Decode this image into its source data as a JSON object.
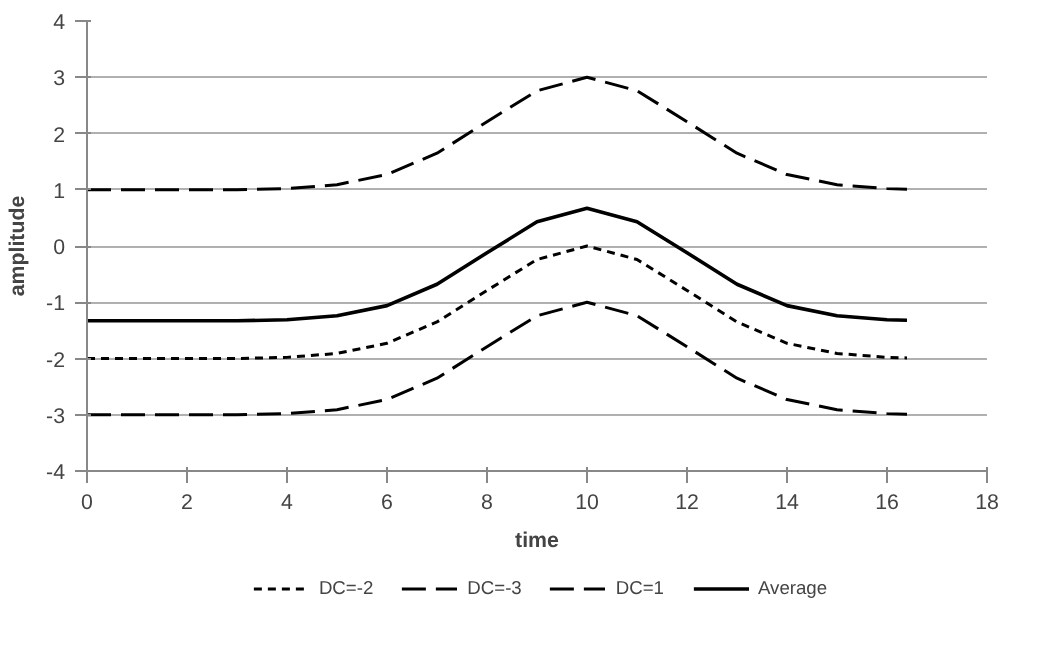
{
  "chart_data": {
    "type": "line",
    "xlabel": "time",
    "ylabel": "amplitude",
    "x": [
      0,
      1,
      2,
      3,
      4,
      5,
      6,
      7,
      8,
      9,
      10,
      11,
      12,
      13,
      14,
      15,
      16,
      16.4
    ],
    "series": [
      {
        "name": "DC=-2",
        "color": "#000000",
        "line_style": "dotted",
        "values": [
          -2,
          -2,
          -2,
          -2,
          -1.98,
          -1.91,
          -1.73,
          -1.35,
          -0.79,
          -0.24,
          0,
          -0.24,
          -0.79,
          -1.35,
          -1.73,
          -1.91,
          -1.98,
          -1.99
        ]
      },
      {
        "name": "DC=-3",
        "color": "#000000",
        "line_style": "dashed",
        "values": [
          -3,
          -3,
          -3,
          -3,
          -2.98,
          -2.91,
          -2.73,
          -2.35,
          -1.79,
          -1.24,
          -1,
          -1.24,
          -1.79,
          -2.35,
          -2.73,
          -2.91,
          -2.98,
          -2.99
        ]
      },
      {
        "name": "DC=1",
        "color": "#000000",
        "line_style": "dashed",
        "values": [
          1,
          1,
          1,
          1,
          1.02,
          1.09,
          1.27,
          1.65,
          2.21,
          2.76,
          3,
          2.76,
          2.21,
          1.65,
          1.27,
          1.09,
          1.02,
          1.01
        ]
      },
      {
        "name": "Average",
        "color": "#000000",
        "line_style": "solid",
        "values": [
          -1.33,
          -1.33,
          -1.33,
          -1.33,
          -1.31,
          -1.24,
          -1.06,
          -0.68,
          -0.12,
          0.43,
          0.67,
          0.43,
          -0.12,
          -0.68,
          -1.06,
          -1.24,
          -1.31,
          -1.32
        ]
      }
    ],
    "xlim": [
      0,
      18
    ],
    "xticks": [
      0,
      2,
      4,
      6,
      8,
      10,
      12,
      14,
      16,
      18
    ],
    "ylim": [
      -4,
      4
    ],
    "yticks": [
      -4,
      -3,
      -2,
      -1,
      0,
      1,
      2,
      3,
      4
    ],
    "grid": "y",
    "legend": "bottom",
    "marker": "none"
  }
}
